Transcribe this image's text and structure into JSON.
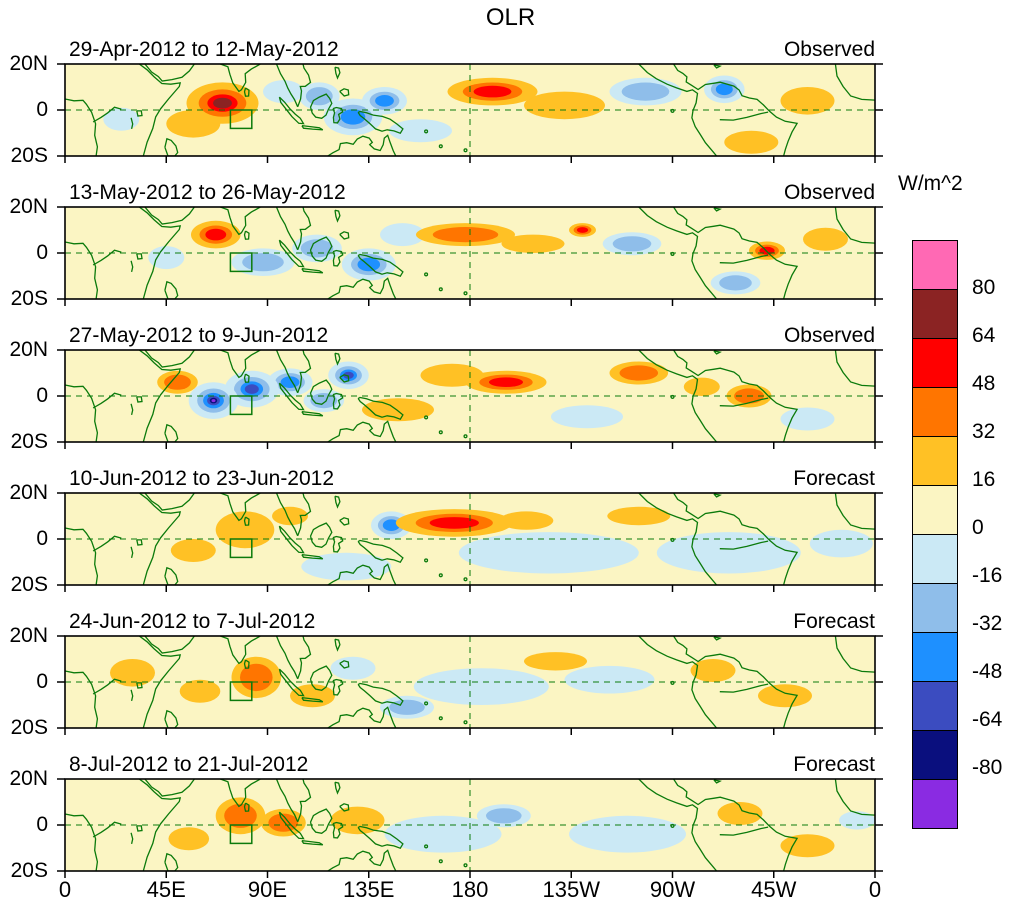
{
  "chart_data": {
    "type": "heatmap",
    "title": "OLR",
    "units": "W/m^2",
    "background_color": "#FBF5C3",
    "coast_color": "#0B7A0B",
    "x_axis": {
      "tick_labels": [
        "0",
        "45E",
        "90E",
        "135E",
        "180",
        "135W",
        "90W",
        "45W",
        "0"
      ],
      "lon_range_deg_east": [
        0,
        360
      ]
    },
    "y_axis": {
      "ticks": [
        "20N",
        "0",
        "20S"
      ],
      "lat_range_deg": [
        -20,
        20
      ]
    },
    "colorbar": {
      "tick_labels": [
        "80",
        "64",
        "48",
        "32",
        "16",
        "0",
        "-16",
        "-32",
        "-48",
        "-64",
        "-80"
      ],
      "levels_w_m2": [
        -80,
        -64,
        -48,
        -32,
        -16,
        0,
        16,
        32,
        48,
        64,
        80
      ],
      "colors_top_to_bottom": [
        "#FF69B4",
        "#8B2323",
        "#FF0000",
        "#FF7500",
        "#FFC125",
        "#FBF5C3",
        "#CBE9F5",
        "#8FBEEA",
        "#1E90FF",
        "#3B4CC0",
        "#0A0F7E",
        "#8A2BE2"
      ]
    },
    "region_marker": {
      "lon_range": [
        73.5,
        83
      ],
      "lat_range": [
        -8,
        0
      ]
    },
    "panels": [
      {
        "title": "29-Apr-2012 to 12-May-2012",
        "label": "Observed",
        "anomaly_centers": [
          {
            "lon": 222,
            "lat": 2,
            "rx": 18,
            "ry": 6,
            "peak": 16
          },
          {
            "lon": 330,
            "lat": 4,
            "rx": 12,
            "ry": 6,
            "peak": 16
          },
          {
            "lon": 305,
            "lat": -14,
            "rx": 12,
            "ry": 5,
            "peak": 16
          },
          {
            "lon": 57,
            "lat": -6,
            "rx": 12,
            "ry": 6,
            "peak": 16
          },
          {
            "lon": 158,
            "lat": -9,
            "rx": 14,
            "ry": 5,
            "peak": -16
          },
          {
            "lon": 25,
            "lat": -4,
            "rx": 8,
            "ry": 5,
            "peak": -16
          },
          {
            "lon": 97,
            "lat": 8,
            "rx": 9,
            "ry": 5,
            "peak": -16
          },
          {
            "lon": 113,
            "lat": 6,
            "rx": 9,
            "ry": 6,
            "peak": -32
          },
          {
            "lon": 258,
            "lat": 8,
            "rx": 16,
            "ry": 6,
            "peak": -32
          },
          {
            "lon": 128,
            "lat": -3,
            "rx": 13,
            "ry": 8,
            "peak": -48
          },
          {
            "lon": 142,
            "lat": 4,
            "rx": 10,
            "ry": 6,
            "peak": -48
          },
          {
            "lon": 293,
            "lat": 9,
            "rx": 9,
            "ry": 6,
            "peak": -48
          },
          {
            "lon": 190,
            "lat": 8,
            "rx": 20,
            "ry": 6,
            "peak": 48
          },
          {
            "lon": 70,
            "lat": 3,
            "rx": 16,
            "ry": 9,
            "peak": 64
          }
        ]
      },
      {
        "title": "13-May-2012 to 26-May-2012",
        "label": "Observed",
        "anomaly_centers": [
          {
            "lon": 45,
            "lat": -2,
            "rx": 8,
            "ry": 5,
            "peak": -16
          },
          {
            "lon": 150,
            "lat": 8,
            "rx": 10,
            "ry": 5,
            "peak": -16
          },
          {
            "lon": 208,
            "lat": 4,
            "rx": 14,
            "ry": 4,
            "peak": 16
          },
          {
            "lon": 338,
            "lat": 6,
            "rx": 10,
            "ry": 5,
            "peak": 16
          },
          {
            "lon": 88,
            "lat": -4,
            "rx": 14,
            "ry": 6,
            "peak": -32
          },
          {
            "lon": 112,
            "lat": 2,
            "rx": 11,
            "ry": 6,
            "peak": -32
          },
          {
            "lon": 252,
            "lat": 4,
            "rx": 13,
            "ry": 5,
            "peak": -32
          },
          {
            "lon": 298,
            "lat": -13,
            "rx": 11,
            "ry": 5,
            "peak": -32
          },
          {
            "lon": 178,
            "lat": 8,
            "rx": 22,
            "ry": 5,
            "peak": 32
          },
          {
            "lon": 135,
            "lat": -5,
            "rx": 12,
            "ry": 7,
            "peak": -48
          },
          {
            "lon": 67,
            "lat": 8,
            "rx": 11,
            "ry": 6,
            "peak": 48
          },
          {
            "lon": 230,
            "lat": 10,
            "rx": 6,
            "ry": 3,
            "peak": 48
          },
          {
            "lon": 312,
            "lat": 1,
            "rx": 8,
            "ry": 4,
            "peak": 48
          }
        ]
      },
      {
        "title": "27-May-2012 to 9-Jun-2012",
        "label": "Observed",
        "anomaly_centers": [
          {
            "lon": 232,
            "lat": -9,
            "rx": 16,
            "ry": 5,
            "peak": -16
          },
          {
            "lon": 330,
            "lat": -10,
            "rx": 12,
            "ry": 5,
            "peak": -16
          },
          {
            "lon": 148,
            "lat": -6,
            "rx": 16,
            "ry": 5,
            "peak": 16
          },
          {
            "lon": 172,
            "lat": 9,
            "rx": 14,
            "ry": 5,
            "peak": 16
          },
          {
            "lon": 283,
            "lat": 4,
            "rx": 8,
            "ry": 4,
            "peak": 16
          },
          {
            "lon": 115,
            "lat": -2,
            "rx": 9,
            "ry": 5,
            "peak": -32
          },
          {
            "lon": 50,
            "lat": 6,
            "rx": 9,
            "ry": 5,
            "peak": 32
          },
          {
            "lon": 255,
            "lat": 10,
            "rx": 13,
            "ry": 5,
            "peak": 32
          },
          {
            "lon": 304,
            "lat": 0,
            "rx": 10,
            "ry": 5,
            "peak": 32
          },
          {
            "lon": 100,
            "lat": 6,
            "rx": 10,
            "ry": 6,
            "peak": -48
          },
          {
            "lon": 126,
            "lat": 9,
            "rx": 9,
            "ry": 6,
            "peak": -64
          },
          {
            "lon": 83,
            "lat": 3,
            "rx": 12,
            "ry": 8,
            "peak": -64
          },
          {
            "lon": 196,
            "lat": 6,
            "rx": 18,
            "ry": 5,
            "peak": 48
          },
          {
            "lon": 66,
            "lat": -2,
            "rx": 11,
            "ry": 8,
            "peak": -85
          }
        ]
      },
      {
        "title": "10-Jun-2012 to 23-Jun-2012",
        "label": "Forecast",
        "anomaly_centers": [
          {
            "lon": 125,
            "lat": -12,
            "rx": 20,
            "ry": 6,
            "peak": -16
          },
          {
            "lon": 215,
            "lat": -6,
            "rx": 40,
            "ry": 9,
            "peak": -16
          },
          {
            "lon": 295,
            "lat": -6,
            "rx": 32,
            "ry": 9,
            "peak": -16
          },
          {
            "lon": 345,
            "lat": -2,
            "rx": 14,
            "ry": 6,
            "peak": -16
          },
          {
            "lon": 205,
            "lat": 8,
            "rx": 12,
            "ry": 4,
            "peak": 16
          },
          {
            "lon": 255,
            "lat": 10,
            "rx": 14,
            "ry": 4,
            "peak": 16
          },
          {
            "lon": 80,
            "lat": 4,
            "rx": 13,
            "ry": 8,
            "peak": 16
          },
          {
            "lon": 57,
            "lat": -5,
            "rx": 10,
            "ry": 5,
            "peak": 16
          },
          {
            "lon": 100,
            "lat": 10,
            "rx": 8,
            "ry": 4,
            "peak": 16
          },
          {
            "lon": 145,
            "lat": 6,
            "rx": 9,
            "ry": 6,
            "peak": -48
          },
          {
            "lon": 173,
            "lat": 7,
            "rx": 26,
            "ry": 6,
            "peak": 48
          }
        ]
      },
      {
        "title": "24-Jun-2012 to 7-Jul-2012",
        "label": "Forecast",
        "anomaly_centers": [
          {
            "lon": 185,
            "lat": -2,
            "rx": 30,
            "ry": 8,
            "peak": -16
          },
          {
            "lon": 242,
            "lat": 1,
            "rx": 20,
            "ry": 6,
            "peak": -16
          },
          {
            "lon": 128,
            "lat": 6,
            "rx": 10,
            "ry": 5,
            "peak": -16
          },
          {
            "lon": 30,
            "lat": 4,
            "rx": 10,
            "ry": 6,
            "peak": 16
          },
          {
            "lon": 60,
            "lat": -4,
            "rx": 9,
            "ry": 5,
            "peak": 16
          },
          {
            "lon": 110,
            "lat": -6,
            "rx": 10,
            "ry": 5,
            "peak": 16
          },
          {
            "lon": 218,
            "lat": 9,
            "rx": 14,
            "ry": 4,
            "peak": 16
          },
          {
            "lon": 288,
            "lat": 5,
            "rx": 10,
            "ry": 5,
            "peak": 16
          },
          {
            "lon": 320,
            "lat": -6,
            "rx": 12,
            "ry": 5,
            "peak": 16
          },
          {
            "lon": 152,
            "lat": -11,
            "rx": 12,
            "ry": 5,
            "peak": -32
          },
          {
            "lon": 85,
            "lat": 2,
            "rx": 11,
            "ry": 9,
            "peak": 32
          }
        ]
      },
      {
        "title": "8-Jul-2012 to 21-Jul-2012",
        "label": "Forecast",
        "anomaly_centers": [
          {
            "lon": 168,
            "lat": -4,
            "rx": 26,
            "ry": 8,
            "peak": -16
          },
          {
            "lon": 250,
            "lat": -4,
            "rx": 26,
            "ry": 8,
            "peak": -16
          },
          {
            "lon": 352,
            "lat": 2,
            "rx": 8,
            "ry": 4,
            "peak": -16
          },
          {
            "lon": 55,
            "lat": -6,
            "rx": 9,
            "ry": 5,
            "peak": 16
          },
          {
            "lon": 130,
            "lat": 2,
            "rx": 12,
            "ry": 6,
            "peak": 16
          },
          {
            "lon": 300,
            "lat": 5,
            "rx": 10,
            "ry": 5,
            "peak": 16
          },
          {
            "lon": 330,
            "lat": -9,
            "rx": 12,
            "ry": 5,
            "peak": 16
          },
          {
            "lon": 195,
            "lat": 4,
            "rx": 12,
            "ry": 5,
            "peak": -32
          },
          {
            "lon": 78,
            "lat": 4,
            "rx": 11,
            "ry": 8,
            "peak": 32
          },
          {
            "lon": 97,
            "lat": 1,
            "rx": 10,
            "ry": 6,
            "peak": 32
          }
        ]
      }
    ]
  }
}
